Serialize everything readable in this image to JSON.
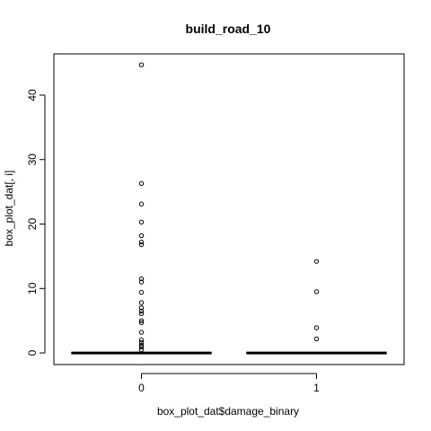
{
  "chart_data": {
    "type": "box",
    "title": "build_road_10",
    "xlabel": "box_plot_dat$damage_binary",
    "ylabel": "box_plot_dat[, i]",
    "categories": [
      "0",
      "1"
    ],
    "ylim": [
      -1.8,
      46.4
    ],
    "yticks": [
      0,
      10,
      20,
      30,
      40
    ],
    "grid": false,
    "legend": "none",
    "boxes": [
      {
        "category": "0",
        "min": 0,
        "q1": 0,
        "median": 0,
        "q3": 0,
        "max": 0
      },
      {
        "category": "1",
        "min": 0,
        "q1": 0,
        "median": 0,
        "q3": 0,
        "max": 0
      }
    ],
    "outliers": [
      {
        "category": "0",
        "values": [
          44.7,
          26.3,
          23.1,
          20.3,
          18.2,
          17.2,
          16.8,
          11.5,
          11.0,
          9.4,
          7.8,
          7.0,
          6.5,
          6.1,
          5.0,
          4.7,
          3.2,
          2.0,
          1.6,
          1.2,
          0.9,
          0.5
        ]
      },
      {
        "category": "1",
        "values": [
          14.2,
          9.5,
          3.9,
          2.2
        ]
      }
    ]
  }
}
